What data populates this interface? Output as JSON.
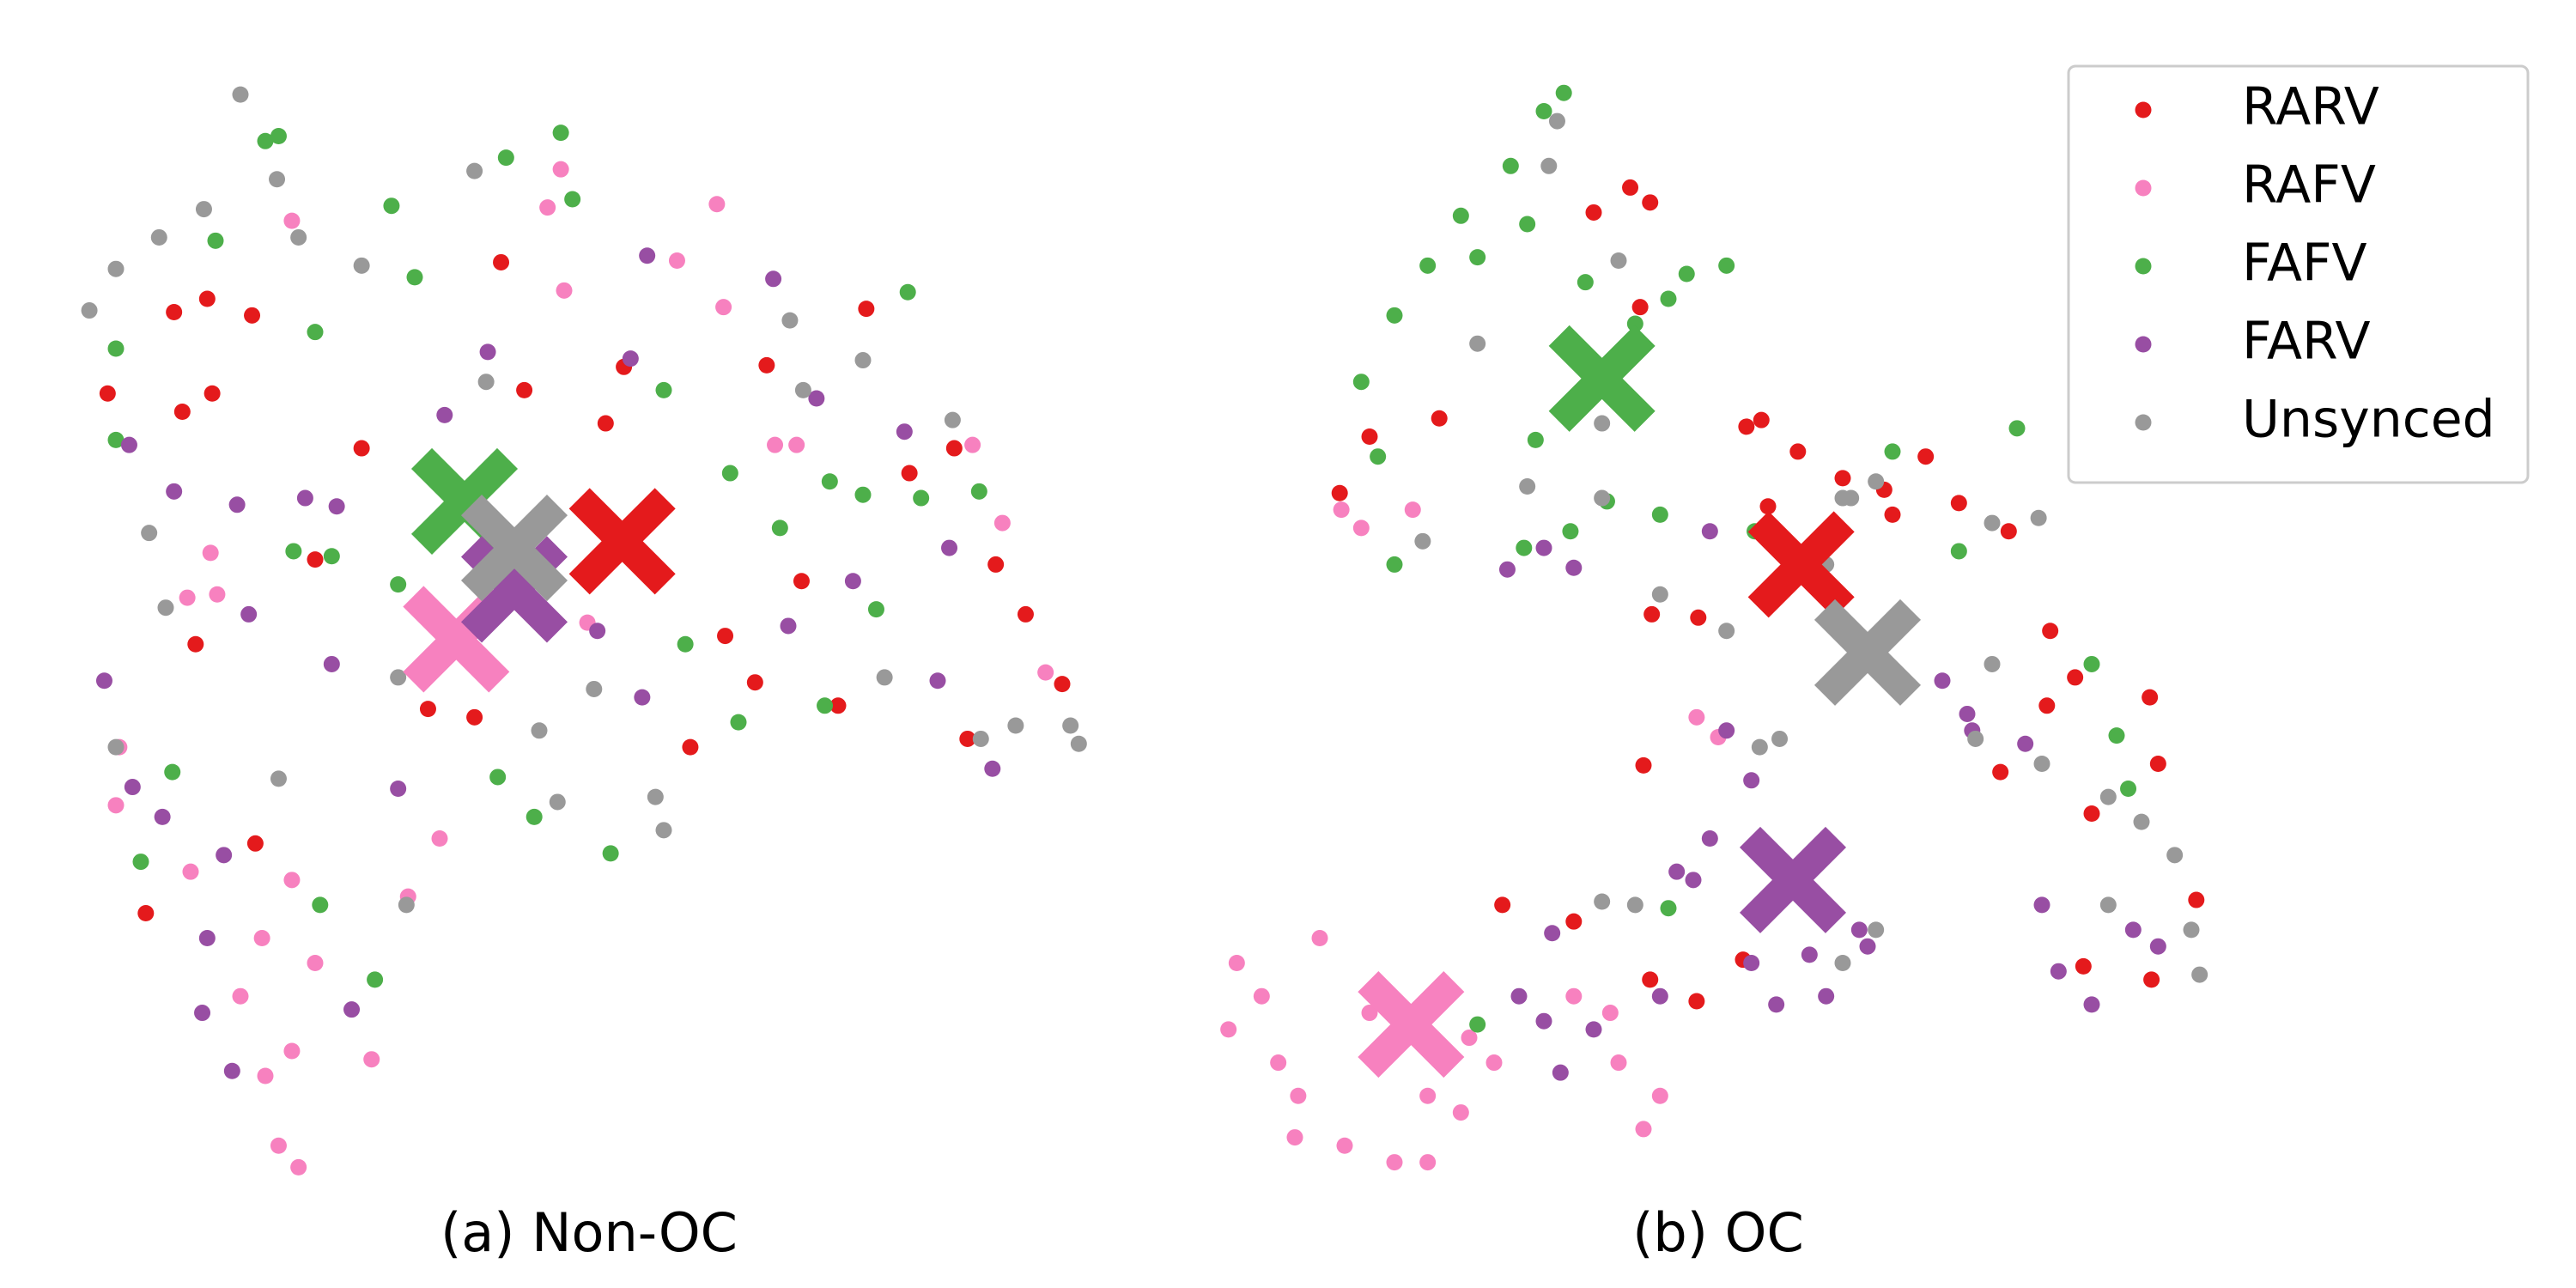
{
  "chart_data": [
    {
      "type": "scatter",
      "title": "(a) Non-OC",
      "xlim": [
        40,
        670
      ],
      "ylim": [
        724,
        44
      ],
      "series": [
        {
          "name": "RARV",
          "color": "#e41a1c",
          "x": [
            65,
            105,
            125,
            152,
            110,
            128,
            218,
            302,
            316,
            376,
            462,
            522,
            548,
            575,
            600,
            618,
            640,
            583,
            437,
            455,
            483,
            505,
            416,
            286,
            258,
            154,
            88,
            118,
            190,
            365
          ],
          "y": [
            237,
            188,
            180,
            190,
            248,
            237,
            270,
            158,
            235,
            221,
            220,
            186,
            285,
            270,
            340,
            370,
            412,
            445,
            383,
            411,
            350,
            425,
            450,
            432,
            427,
            508,
            550,
            388,
            337,
            255
          ]
        },
        {
          "name": "RAFV",
          "color": "#f781bf",
          "x": [
            176,
            330,
            338,
            432,
            408,
            436,
            340,
            467,
            480,
            586,
            604,
            630,
            354,
            127,
            113,
            131,
            72,
            70,
            115,
            176,
            158,
            190,
            145,
            176,
            160,
            168,
            180,
            224,
            246,
            265
          ],
          "y": [
            133,
            125,
            102,
            123,
            157,
            185,
            175,
            268,
            268,
            268,
            315,
            405,
            375,
            333,
            360,
            358,
            450,
            485,
            525,
            530,
            565,
            580,
            600,
            633,
            648,
            690,
            703,
            638,
            540,
            505
          ]
        },
        {
          "name": "FAFV",
          "color": "#4daf4a",
          "x": [
            160,
            168,
            338,
            236,
            305,
            130,
            70,
            190,
            250,
            345,
            547,
            400,
            440,
            470,
            500,
            520,
            555,
            590,
            528,
            497,
            445,
            413,
            368,
            322,
            300,
            240,
            200,
            177,
            104,
            85,
            193,
            226,
            70
          ],
          "y": [
            85,
            82,
            80,
            124,
            95,
            145,
            210,
            200,
            167,
            120,
            176,
            235,
            285,
            318,
            290,
            298,
            300,
            296,
            367,
            425,
            435,
            388,
            514,
            492,
            468,
            352,
            335,
            332,
            465,
            519,
            545,
            590,
            265
          ]
        },
        {
          "name": "FARV",
          "color": "#984ea3",
          "x": [
            78,
            105,
            143,
            184,
            268,
            294,
            380,
            390,
            466,
            492,
            545,
            572,
            565,
            598,
            514,
            475,
            387,
            360,
            203,
            200,
            150,
            63,
            80,
            98,
            135,
            125,
            122,
            140,
            240,
            212
          ],
          "y": [
            268,
            296,
            304,
            300,
            250,
            212,
            216,
            154,
            168,
            240,
            260,
            330,
            410,
            463,
            350,
            377,
            420,
            380,
            305,
            400,
            370,
            410,
            474,
            492,
            515,
            565,
            610,
            645,
            475,
            608
          ]
        },
        {
          "name": "Unsynced",
          "color": "#999999",
          "x": [
            145,
            167,
            180,
            123,
            70,
            54,
            96,
            218,
            286,
            293,
            476,
            520,
            484,
            574,
            533,
            591,
            612,
            645,
            650,
            400,
            395,
            336,
            325,
            358,
            168,
            240,
            100,
            90,
            245,
            70
          ],
          "y": [
            57,
            108,
            143,
            126,
            162,
            187,
            143,
            160,
            103,
            230,
            193,
            217,
            235,
            253,
            408,
            445,
            437,
            437,
            448,
            500,
            480,
            483,
            440,
            415,
            469,
            408,
            366,
            321,
            545,
            450
          ]
        }
      ],
      "centroids": {
        "x": [
          375,
          275,
          280,
          310,
          310
        ],
        "y": [
          326,
          385,
          302,
          355,
          330
        ]
      }
    },
    {
      "type": "scatter",
      "title": "(b) OC",
      "xlim": [
        720,
        1350
      ],
      "ylim": [
        724,
        44
      ],
      "legend": "upper right",
      "series": [
        {
          "name": "RARV",
          "color": "#e41a1c",
          "x": [
            982,
            994,
            960,
            988,
            867,
            825,
            807,
            1052,
            1061,
            1083,
            1110,
            1135,
            1160,
            1180,
            1210,
            1235,
            1250,
            1295,
            1300,
            1260,
            1205,
            1233,
            1023,
            995,
            990,
            905,
            948,
            994,
            1022,
            1050,
            1323,
            1255,
            1296,
            1140,
            1065
          ],
          "y": [
            113,
            122,
            128,
            185,
            252,
            263,
            297,
            257,
            253,
            272,
            288,
            295,
            275,
            303,
            320,
            380,
            408,
            420,
            460,
            490,
            465,
            425,
            372,
            370,
            461,
            545,
            555,
            590,
            603,
            578,
            542,
            582,
            590,
            310,
            305
          ]
        },
        {
          "name": "RAFV",
          "color": "#f781bf",
          "x": [
            808,
            820,
            851,
            1022,
            1035,
            745,
            760,
            740,
            795,
            770,
            782,
            810,
            840,
            860,
            880,
            900,
            780,
            825,
            860,
            970,
            990,
            1000,
            975,
            948,
            885
          ],
          "y": [
            307,
            318,
            307,
            432,
            444,
            580,
            600,
            620,
            565,
            640,
            660,
            690,
            700,
            700,
            670,
            640,
            685,
            610,
            660,
            610,
            680,
            660,
            640,
            600,
            625
          ]
        },
        {
          "name": "FAFV",
          "color": "#4daf4a",
          "x": [
            942,
            930,
            910,
            880,
            860,
            840,
            820,
            830,
            840,
            890,
            920,
            955,
            985,
            1005,
            1040,
            1016,
            925,
            946,
            968,
            1000,
            1057,
            1140,
            1215,
            1180,
            1260,
            1275,
            1282,
            1005,
            890,
            918
          ],
          "y": [
            56,
            67,
            100,
            130,
            160,
            190,
            230,
            275,
            340,
            155,
            135,
            170,
            195,
            180,
            160,
            165,
            265,
            320,
            302,
            310,
            320,
            272,
            258,
            332,
            400,
            443,
            475,
            547,
            617,
            330
          ]
        },
        {
          "name": "FARV",
          "color": "#984ea3",
          "x": [
            908,
            930,
            948,
            1030,
            1040,
            1055,
            1020,
            1030,
            1010,
            1120,
            1090,
            1100,
            1070,
            1125,
            1185,
            1220,
            1188,
            1230,
            1240,
            1260,
            1285,
            1300,
            960,
            930,
            915,
            1000,
            935,
            940,
            1055,
            1170
          ],
          "y": [
            343,
            330,
            342,
            320,
            440,
            470,
            530,
            505,
            525,
            560,
            575,
            600,
            605,
            570,
            430,
            448,
            440,
            545,
            585,
            605,
            560,
            570,
            620,
            615,
            600,
            600,
            562,
            646,
            580,
            410
          ]
        },
        {
          "name": "Unsynced",
          "color": "#999999",
          "x": [
            938,
            933,
            975,
            890,
            965,
            920,
            965,
            857,
            1000,
            1040,
            1070,
            1100,
            1115,
            1130,
            1200,
            1228,
            1200,
            1190,
            1230,
            1270,
            1290,
            1310,
            1320,
            1325,
            1270,
            1060,
            1072,
            965,
            985,
            1110,
            1130,
            1110,
            1080
          ],
          "y": [
            73,
            100,
            157,
            207,
            255,
            293,
            300,
            326,
            358,
            380,
            350,
            340,
            300,
            290,
            315,
            312,
            400,
            445,
            460,
            480,
            495,
            515,
            560,
            587,
            545,
            450,
            445,
            543,
            545,
            580,
            560,
            300,
            350
          ]
        }
      ],
      "centroids": {
        "x": [
          1085,
          850,
          965,
          1080,
          1125
        ],
        "y": [
          340,
          617,
          228,
          530,
          393
        ]
      }
    }
  ]
}
